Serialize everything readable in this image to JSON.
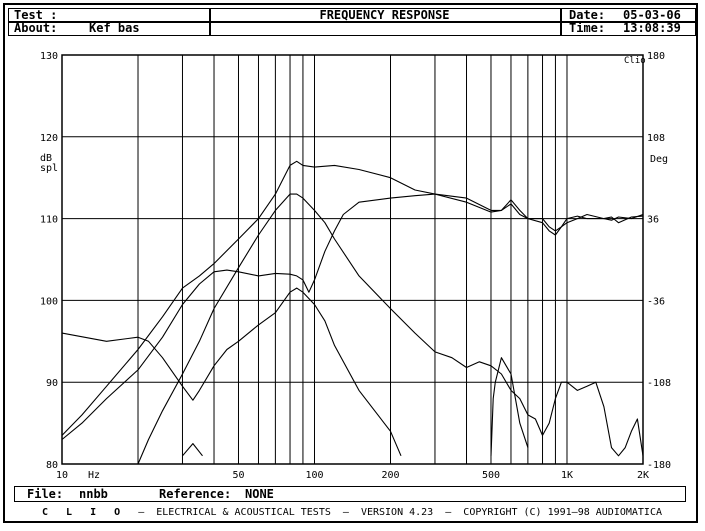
{
  "header": {
    "test_label": "Test :",
    "test_value": "",
    "about_label": "About:",
    "about_value": "Kef bas",
    "title": "FREQUENCY RESPONSE",
    "date_label": "Date:",
    "date_value": "05-03-06",
    "time_label": "Time:",
    "time_value": "13:08:39"
  },
  "file_bar": {
    "file_label": "File:",
    "file_value": "nnbb",
    "reference_label": "Reference:",
    "reference_value": "NONE"
  },
  "footer": {
    "brand": "C L I O",
    "text": "  –  ELECTRICAL & ACOUSTICAL TESTS  –  VERSION 4.23  –  COPYRIGHT (C) 1991–98 AUDIOMATICA"
  },
  "colors": {
    "line": "#000000",
    "grid": "#000000",
    "background": "#ffffff"
  },
  "chart_data": {
    "type": "line",
    "title": "FREQUENCY RESPONSE",
    "xlabel": "Hz",
    "ylabel": "dB spl",
    "y2label": "Deg",
    "corner_label": "Clio",
    "x_scale": "log",
    "xlim": [
      10,
      2000
    ],
    "ylim": [
      80,
      130
    ],
    "y2lim": [
      -180,
      180
    ],
    "grid": true,
    "x_tick_labels": [
      {
        "value": 10,
        "label": "10"
      },
      {
        "value": 50,
        "label": "50"
      },
      {
        "value": 100,
        "label": "100"
      },
      {
        "value": 200,
        "label": "200"
      },
      {
        "value": 500,
        "label": "500"
      },
      {
        "value": 1000,
        "label": "1K"
      },
      {
        "value": 2000,
        "label": "2K"
      }
    ],
    "x_gridlines": [
      20,
      30,
      40,
      50,
      60,
      70,
      80,
      90,
      100,
      200,
      300,
      400,
      500,
      600,
      700,
      800,
      900,
      1000
    ],
    "y_ticks": [
      80,
      90,
      100,
      110,
      120,
      130
    ],
    "y2_ticks": [
      -180,
      -108,
      -36,
      36,
      108,
      180
    ],
    "series": [
      {
        "points": [
          [
            10,
            83.5
          ],
          [
            12,
            86
          ],
          [
            15,
            89.5
          ],
          [
            20,
            94
          ],
          [
            25,
            98
          ],
          [
            30,
            101.5
          ],
          [
            35,
            103
          ],
          [
            40,
            104.5
          ],
          [
            50,
            107.5
          ],
          [
            60,
            110
          ],
          [
            70,
            113
          ],
          [
            80,
            116.5
          ],
          [
            85,
            117
          ],
          [
            90,
            116.5
          ],
          [
            100,
            116.3
          ],
          [
            120,
            116.5
          ],
          [
            150,
            116
          ],
          [
            200,
            115
          ],
          [
            250,
            113.5
          ],
          [
            300,
            113
          ],
          [
            400,
            112
          ],
          [
            500,
            110.8
          ],
          [
            550,
            111
          ],
          [
            600,
            111.8
          ],
          [
            650,
            110.5
          ],
          [
            700,
            110
          ],
          [
            800,
            109.5
          ],
          [
            850,
            108.5
          ],
          [
            900,
            108
          ],
          [
            950,
            109
          ],
          [
            1000,
            110
          ],
          [
            1100,
            110.3
          ],
          [
            1200,
            110
          ],
          [
            1400,
            110
          ],
          [
            1500,
            109.8
          ],
          [
            1600,
            110.2
          ],
          [
            1800,
            110
          ],
          [
            2000,
            110.5
          ]
        ]
      },
      {
        "points": [
          [
            10,
            83
          ],
          [
            12,
            85
          ],
          [
            15,
            88
          ],
          [
            20,
            91.5
          ],
          [
            25,
            95.5
          ],
          [
            30,
            99.5
          ],
          [
            35,
            102
          ],
          [
            40,
            103.5
          ],
          [
            45,
            103.7
          ],
          [
            50,
            103.5
          ],
          [
            60,
            103
          ],
          [
            70,
            103.3
          ],
          [
            80,
            103.2
          ],
          [
            85,
            103
          ],
          [
            90,
            102.5
          ],
          [
            95,
            101
          ],
          [
            100,
            102.5
          ],
          [
            110,
            106
          ],
          [
            120,
            108.5
          ],
          [
            130,
            110.5
          ],
          [
            150,
            112
          ],
          [
            200,
            112.5
          ],
          [
            250,
            112.8
          ],
          [
            300,
            113
          ],
          [
            400,
            112.5
          ],
          [
            500,
            111
          ],
          [
            550,
            111
          ],
          [
            600,
            112.3
          ],
          [
            650,
            111
          ],
          [
            700,
            110
          ],
          [
            800,
            110
          ],
          [
            850,
            109
          ],
          [
            900,
            108.5
          ],
          [
            950,
            109
          ],
          [
            1000,
            109.5
          ],
          [
            1100,
            110
          ],
          [
            1200,
            110.5
          ],
          [
            1400,
            110
          ],
          [
            1500,
            110.2
          ],
          [
            1600,
            109.5
          ],
          [
            1800,
            110.2
          ],
          [
            2000,
            110.3
          ]
        ]
      },
      {
        "points": [
          [
            20,
            80
          ],
          [
            22,
            83
          ],
          [
            25,
            86.5
          ],
          [
            30,
            91
          ],
          [
            35,
            95
          ],
          [
            40,
            99
          ],
          [
            50,
            104
          ],
          [
            60,
            108
          ],
          [
            70,
            111
          ],
          [
            80,
            113
          ],
          [
            85,
            113
          ],
          [
            90,
            112.5
          ],
          [
            100,
            111
          ],
          [
            110,
            109.5
          ],
          [
            120,
            107.5
          ],
          [
            150,
            103
          ],
          [
            200,
            99
          ],
          [
            250,
            96
          ],
          [
            300,
            93.7
          ],
          [
            350,
            93
          ],
          [
            400,
            91.8
          ],
          [
            450,
            92.5
          ],
          [
            500,
            92
          ],
          [
            550,
            91
          ],
          [
            600,
            89
          ],
          [
            650,
            88
          ],
          [
            700,
            86
          ],
          [
            750,
            85.5
          ],
          [
            800,
            83.5
          ],
          [
            850,
            85
          ],
          [
            900,
            88
          ],
          [
            950,
            90
          ],
          [
            1000,
            90
          ],
          [
            1100,
            89
          ],
          [
            1200,
            89.5
          ],
          [
            1300,
            90
          ],
          [
            1400,
            87
          ],
          [
            1500,
            82
          ],
          [
            1600,
            81
          ],
          [
            1700,
            82
          ],
          [
            1800,
            84
          ],
          [
            1900,
            85.5
          ],
          [
            2000,
            81
          ]
        ]
      },
      {
        "points": [
          [
            10,
            96
          ],
          [
            15,
            95
          ],
          [
            20,
            95.5
          ],
          [
            22,
            95
          ],
          [
            25,
            93
          ],
          [
            30,
            89.5
          ],
          [
            33,
            87.8
          ],
          [
            35,
            89
          ],
          [
            40,
            92
          ],
          [
            45,
            94
          ],
          [
            50,
            95
          ],
          [
            60,
            97
          ],
          [
            70,
            98.5
          ],
          [
            80,
            101
          ],
          [
            85,
            101.5
          ],
          [
            90,
            101
          ],
          [
            100,
            99.5
          ],
          [
            110,
            97.5
          ],
          [
            120,
            94.5
          ],
          [
            150,
            89
          ],
          [
            200,
            84
          ],
          [
            220,
            81
          ]
        ]
      },
      {
        "points": [
          [
            500,
            81
          ],
          [
            510,
            88
          ],
          [
            520,
            90
          ],
          [
            550,
            93
          ],
          [
            600,
            91
          ],
          [
            650,
            85
          ],
          [
            700,
            82
          ]
        ]
      },
      {
        "points": [
          [
            30,
            81
          ],
          [
            33,
            82.5
          ],
          [
            36,
            81
          ]
        ]
      }
    ]
  }
}
